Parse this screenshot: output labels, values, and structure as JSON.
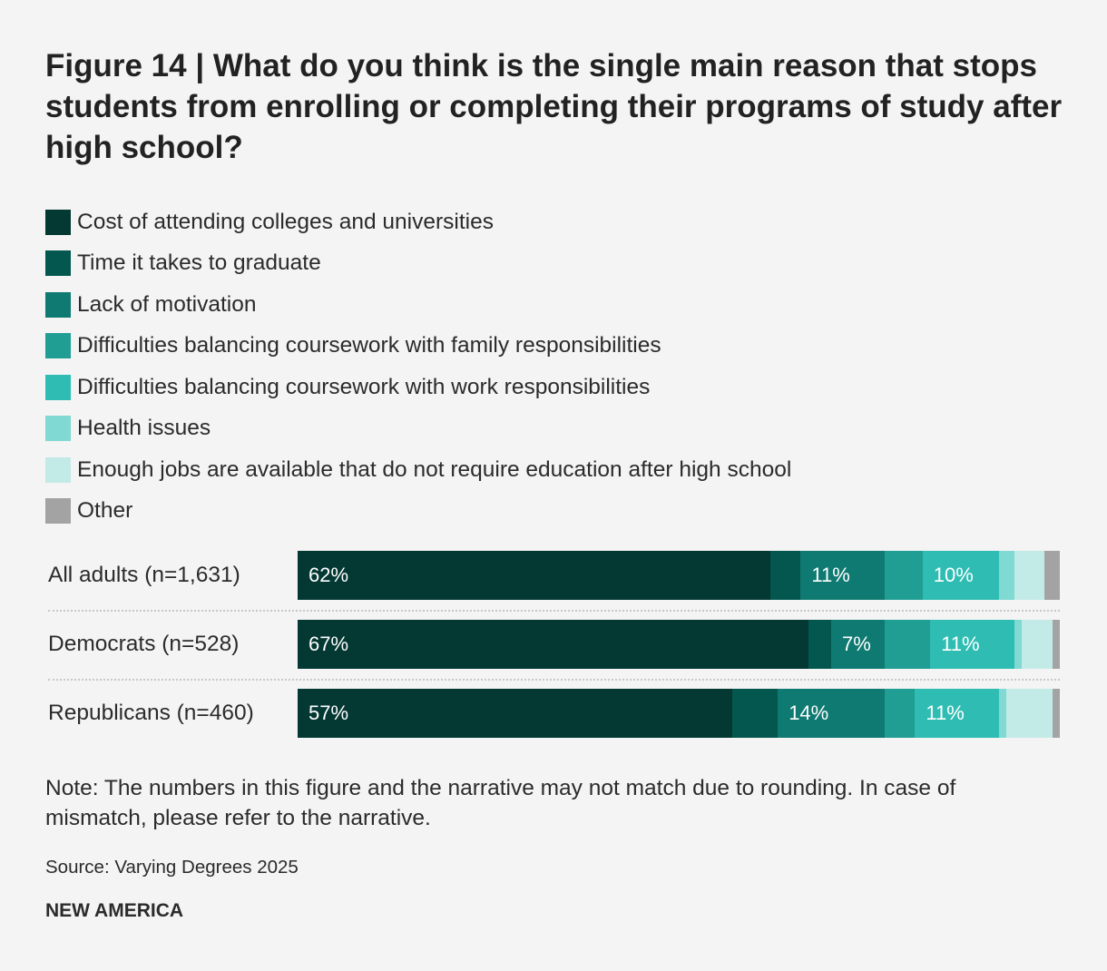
{
  "title": "Figure 14 | What do you think is the single main reason that stops students from enrolling or completing their programs of study after high school?",
  "chart_data": {
    "type": "bar",
    "orientation": "horizontal",
    "stacked": true,
    "xlim": [
      0,
      100
    ],
    "categories": [
      "All adults (n=1,631)",
      "Democrats (n=528)",
      "Republicans (n=460)"
    ],
    "series": [
      {
        "name": "Cost of attending colleges and universities",
        "color": "#033833",
        "values": [
          62,
          67,
          57
        ],
        "labels": [
          "62%",
          "67%",
          "57%"
        ]
      },
      {
        "name": "Time it takes to graduate",
        "color": "#03574f",
        "values": [
          4,
          3,
          6
        ],
        "labels": [
          "",
          "",
          ""
        ]
      },
      {
        "name": "Lack of motivation",
        "color": "#0f7a72",
        "values": [
          11,
          7,
          14
        ],
        "labels": [
          "11%",
          "7%",
          "14%"
        ]
      },
      {
        "name": "Difficulties balancing coursework with family responsibilities",
        "color": "#209e94",
        "values": [
          5,
          6,
          4
        ],
        "labels": [
          "",
          "",
          ""
        ]
      },
      {
        "name": "Difficulties balancing coursework with work responsibilities",
        "color": "#2fbdb3",
        "values": [
          10,
          11,
          11
        ],
        "labels": [
          "10%",
          "11%",
          "11%"
        ]
      },
      {
        "name": "Health issues",
        "color": "#80d9d2",
        "values": [
          2,
          1,
          1
        ],
        "labels": [
          "",
          "",
          ""
        ]
      },
      {
        "name": "Enough jobs are available that do not require education after high school",
        "color": "#c2ebe8",
        "values": [
          4,
          4,
          6
        ],
        "labels": [
          "",
          "",
          ""
        ]
      },
      {
        "name": "Other",
        "color": "#a3a3a3",
        "values": [
          2,
          1,
          1
        ],
        "labels": [
          "",
          "",
          ""
        ]
      }
    ]
  },
  "note": "Note: The numbers in this figure and the narrative may not match due to rounding. In case of mismatch, please refer to the narrative.",
  "source": "Source: Varying Degrees 2025",
  "brand": "NEW AMERICA"
}
